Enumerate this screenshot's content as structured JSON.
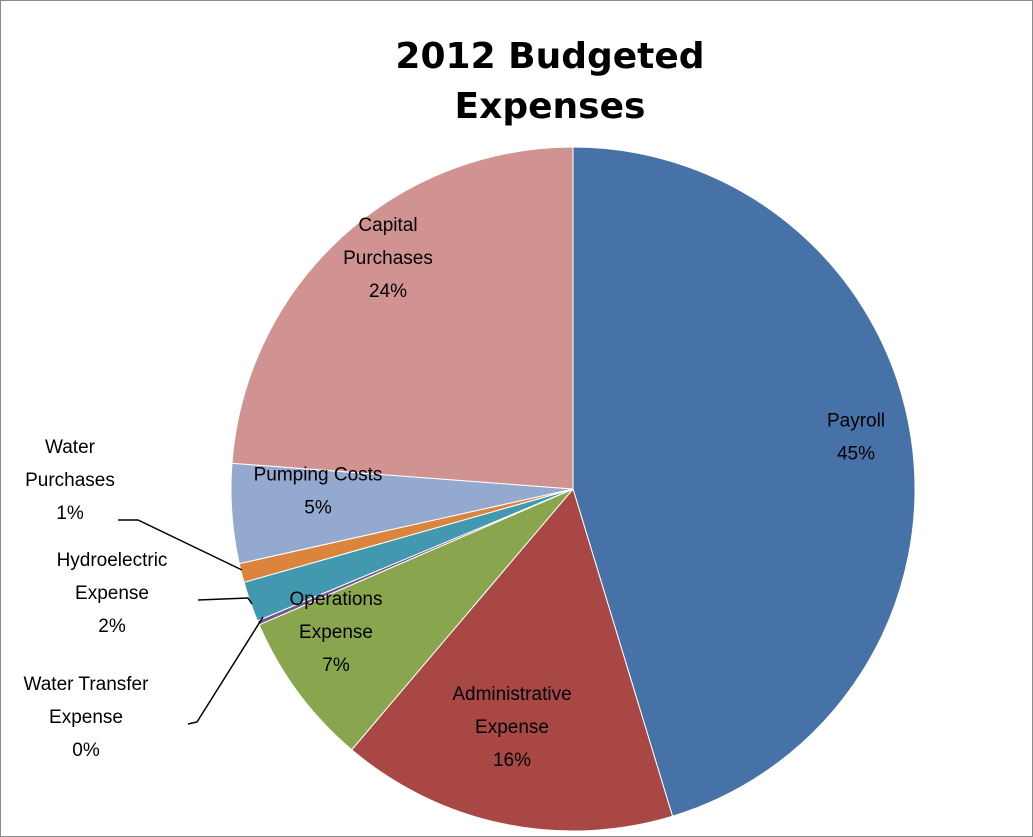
{
  "chart_data": {
    "type": "pie",
    "title_lines": [
      "2012 Budgeted",
      "Expenses"
    ],
    "legend": "none",
    "slices": [
      {
        "label_lines": [
          "Payroll"
        ],
        "percent_label": "45%",
        "value": 45.3,
        "color": "#4672a8"
      },
      {
        "label_lines": [
          "Administrative",
          "Expense"
        ],
        "percent_label": "16%",
        "value": 15.9,
        "color": "#a94744"
      },
      {
        "label_lines": [
          "Operations",
          "Expense"
        ],
        "percent_label": "7%",
        "value": 7.3,
        "color": "#89a64e"
      },
      {
        "label_lines": [
          "Water Transfer",
          "Expense"
        ],
        "percent_label": "0%",
        "value": 0.2,
        "color": "#71588f"
      },
      {
        "label_lines": [
          "Hydroelectric",
          "Expense"
        ],
        "percent_label": "2%",
        "value": 1.9,
        "color": "#4298af"
      },
      {
        "label_lines": [
          "Water",
          "Purchases"
        ],
        "percent_label": "1%",
        "value": 0.9,
        "color": "#db843d"
      },
      {
        "label_lines": [
          "Pumping Costs"
        ],
        "percent_label": "5%",
        "value": 4.7,
        "color": "#93a9cf"
      },
      {
        "label_lines": [
          "Capital",
          "Purchases"
        ],
        "percent_label": "24%",
        "value": 23.8,
        "color": "#d09392"
      }
    ]
  }
}
